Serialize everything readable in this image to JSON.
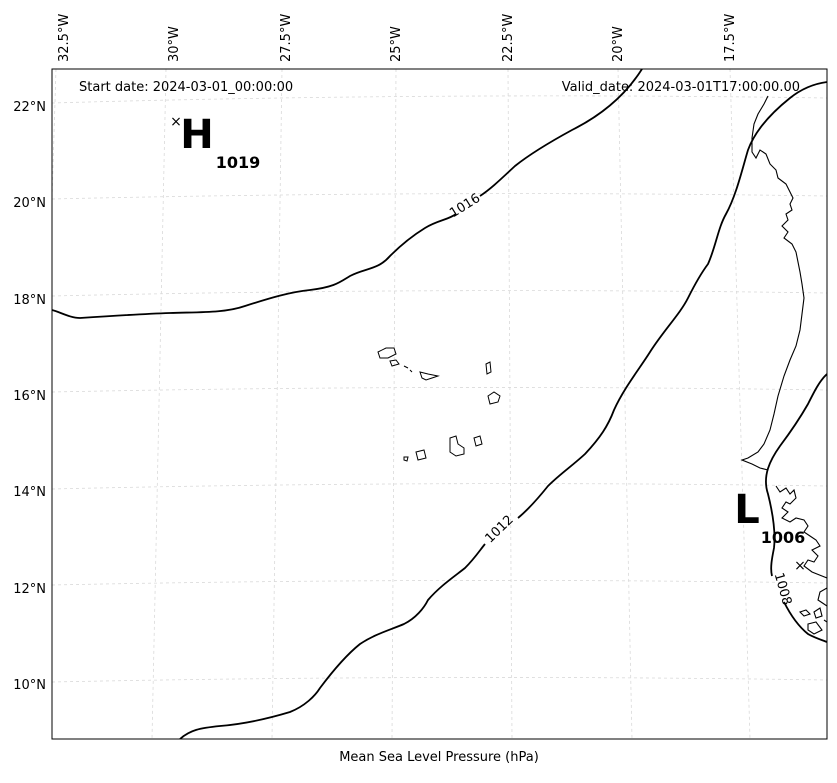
{
  "header": {
    "start_date": "Start date: 2024-03-01_00:00:00",
    "valid_date": "Valid_date: 2024-03-01T17:00:00.00"
  },
  "footer": {
    "caption": "Mean Sea Level Pressure (hPa)"
  },
  "axes": {
    "lon_labels": [
      "32.5°W",
      "30°W",
      "27.5°W",
      "25°W",
      "22.5°W",
      "20°W",
      "17.5°W"
    ],
    "lat_labels": [
      "22°N",
      "20°N",
      "18°N",
      "16°N",
      "14°N",
      "12°N",
      "10°N"
    ]
  },
  "pressure_centers": [
    {
      "letter": "H",
      "value": "1019",
      "marker": "×"
    },
    {
      "letter": "L",
      "value": "1006",
      "marker": "×"
    }
  ],
  "contour_labels": [
    "1016",
    "1012",
    "1008"
  ]
}
